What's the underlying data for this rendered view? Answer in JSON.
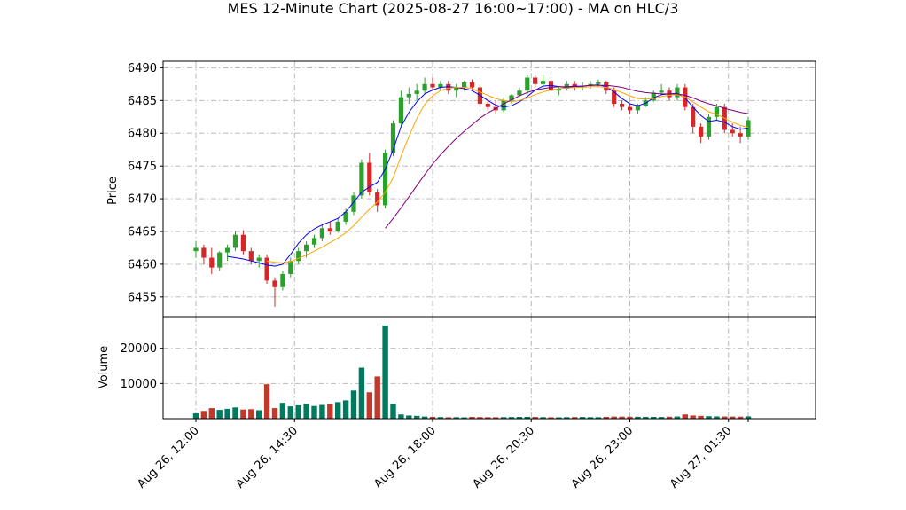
{
  "chart_data": {
    "type": "candlestick",
    "title": "MES 12-Minute Chart (2025-08-27 16:00~17:00) - MA on HLC/3",
    "price_panel": {
      "ylabel": "Price",
      "ylim": [
        6452,
        6491
      ],
      "yticks": [
        6455,
        6460,
        6465,
        6470,
        6475,
        6480,
        6485,
        6490
      ],
      "ytick_labels": [
        "6455",
        "6460",
        "6465",
        "6470",
        "6475",
        "6480",
        "6485",
        "6490"
      ],
      "grid": true
    },
    "volume_panel": {
      "ylabel": "Volume",
      "ylim": [
        0,
        29000
      ],
      "yticks": [
        10000,
        20000
      ],
      "ytick_labels": [
        "10000",
        "20000"
      ],
      "grid": true
    },
    "x_axis": {
      "tick_labels": [
        "Aug 26, 12:00",
        "Aug 26, 14:30",
        "Aug 26, 18:00",
        "Aug 26, 20:30",
        "Aug 26, 23:00",
        "Aug 27, 01:30"
      ],
      "tick_bar_index": [
        0,
        12.5,
        30,
        42.5,
        55,
        67.5
      ],
      "label_rotation": 45
    },
    "bar_interval_minutes": 12,
    "candles_ohlc": [
      [
        6462.0,
        6463.5,
        6461.0,
        6462.5
      ],
      [
        6462.5,
        6463.0,
        6460.0,
        6461.0
      ],
      [
        6461.0,
        6462.5,
        6458.5,
        6459.5
      ],
      [
        6459.5,
        6462.0,
        6459.0,
        6461.8
      ],
      [
        6461.8,
        6463.0,
        6460.5,
        6462.5
      ],
      [
        6462.5,
        6465.0,
        6462.0,
        6464.5
      ],
      [
        6464.5,
        6465.2,
        6461.5,
        6462.0
      ],
      [
        6462.0,
        6462.5,
        6460.0,
        6460.5
      ],
      [
        6460.5,
        6461.5,
        6459.5,
        6461.0
      ],
      [
        6461.0,
        6461.5,
        6457.0,
        6457.5
      ],
      [
        6457.5,
        6458.0,
        6453.5,
        6456.5
      ],
      [
        6456.5,
        6459.0,
        6456.0,
        6458.5
      ],
      [
        6458.5,
        6461.0,
        6458.0,
        6460.5
      ],
      [
        6460.5,
        6462.5,
        6460.0,
        6462.0
      ],
      [
        6462.0,
        6463.5,
        6461.0,
        6463.0
      ],
      [
        6463.0,
        6464.5,
        6462.5,
        6464.0
      ],
      [
        6464.0,
        6466.0,
        6463.5,
        6465.5
      ],
      [
        6465.5,
        6466.5,
        6464.5,
        6465.0
      ],
      [
        6465.0,
        6467.0,
        6464.8,
        6466.5
      ],
      [
        6466.5,
        6468.5,
        6466.0,
        6468.0
      ],
      [
        6468.0,
        6471.0,
        6467.5,
        6470.5
      ],
      [
        6470.5,
        6476.0,
        6470.0,
        6475.5
      ],
      [
        6475.5,
        6477.0,
        6470.5,
        6471.0
      ],
      [
        6471.0,
        6471.5,
        6468.0,
        6469.0
      ],
      [
        6469.0,
        6477.5,
        6468.5,
        6477.0
      ],
      [
        6477.0,
        6482.0,
        6476.5,
        6481.5
      ],
      [
        6481.5,
        6486.5,
        6481.0,
        6485.5
      ],
      [
        6485.5,
        6487.0,
        6484.5,
        6486.0
      ],
      [
        6486.0,
        6487.5,
        6485.0,
        6486.5
      ],
      [
        6486.5,
        6488.5,
        6486.0,
        6487.5
      ],
      [
        6487.5,
        6488.5,
        6486.5,
        6487.0
      ],
      [
        6487.0,
        6488.0,
        6486.5,
        6487.5
      ],
      [
        6487.5,
        6488.0,
        6486.0,
        6486.5
      ],
      [
        6486.5,
        6487.5,
        6485.5,
        6487.0
      ],
      [
        6487.0,
        6488.0,
        6486.5,
        6487.8
      ],
      [
        6487.8,
        6488.2,
        6486.5,
        6487.0
      ],
      [
        6487.0,
        6487.5,
        6484.0,
        6484.5
      ],
      [
        6484.5,
        6485.0,
        6483.5,
        6484.0
      ],
      [
        6484.0,
        6485.0,
        6483.0,
        6483.5
      ],
      [
        6483.5,
        6485.5,
        6483.2,
        6485.0
      ],
      [
        6485.0,
        6486.0,
        6484.5,
        6485.8
      ],
      [
        6485.8,
        6487.0,
        6485.5,
        6486.5
      ],
      [
        6486.5,
        6489.0,
        6486.0,
        6488.5
      ],
      [
        6488.5,
        6489.0,
        6487.0,
        6487.5
      ],
      [
        6487.5,
        6489.0,
        6487.0,
        6488.0
      ],
      [
        6488.0,
        6488.5,
        6486.0,
        6486.5
      ],
      [
        6486.5,
        6487.0,
        6485.8,
        6486.8
      ],
      [
        6486.8,
        6488.0,
        6486.5,
        6487.5
      ],
      [
        6487.5,
        6488.0,
        6486.5,
        6487.0
      ],
      [
        6487.0,
        6487.8,
        6486.5,
        6487.2
      ],
      [
        6487.2,
        6488.0,
        6486.8,
        6487.5
      ],
      [
        6487.5,
        6488.2,
        6487.0,
        6487.8
      ],
      [
        6487.8,
        6488.0,
        6486.0,
        6486.5
      ],
      [
        6486.5,
        6487.0,
        6484.0,
        6484.5
      ],
      [
        6484.5,
        6485.0,
        6483.5,
        6484.0
      ],
      [
        6484.0,
        6484.5,
        6483.0,
        6483.5
      ],
      [
        6483.5,
        6484.5,
        6483.0,
        6484.2
      ],
      [
        6484.2,
        6485.5,
        6484.0,
        6485.0
      ],
      [
        6485.0,
        6486.5,
        6484.8,
        6486.2
      ],
      [
        6486.2,
        6487.5,
        6485.8,
        6486.5
      ],
      [
        6486.5,
        6487.0,
        6485.0,
        6485.5
      ],
      [
        6485.5,
        6487.5,
        6485.0,
        6487.0
      ],
      [
        6487.0,
        6487.5,
        6483.5,
        6484.0
      ],
      [
        6484.0,
        6484.5,
        6480.0,
        6481.0
      ],
      [
        6481.0,
        6481.5,
        6478.5,
        6479.5
      ],
      [
        6479.5,
        6483.0,
        6479.0,
        6482.5
      ],
      [
        6482.5,
        6484.5,
        6482.0,
        6484.0
      ],
      [
        6484.0,
        6484.5,
        6480.0,
        6480.5
      ],
      [
        6480.5,
        6481.5,
        6479.5,
        6480.0
      ],
      [
        6480.0,
        6481.0,
        6478.5,
        6479.5
      ],
      [
        6479.5,
        6482.5,
        6479.0,
        6482.0
      ]
    ],
    "volume": [
      1500,
      2200,
      3000,
      2500,
      2800,
      3200,
      2600,
      2700,
      2400,
      9800,
      3000,
      4500,
      3500,
      3800,
      4200,
      3600,
      3900,
      4100,
      4700,
      5200,
      8000,
      14500,
      7500,
      12000,
      26500,
      4200,
      1200,
      900,
      800,
      600,
      500,
      450,
      400,
      420,
      380,
      500,
      450,
      420,
      400,
      430,
      460,
      500,
      520,
      480,
      430,
      400,
      380,
      420,
      450,
      470,
      430,
      410,
      520,
      600,
      580,
      560,
      540,
      520,
      500,
      480,
      560,
      620,
      1200,
      900,
      800,
      700,
      650,
      620,
      600,
      580,
      650
    ],
    "volume_up_color": "#007a5e",
    "volume_down_color": "#c0392b",
    "candle_up_color": "#2ca02c",
    "candle_down_color": "#d62728",
    "ma_lines": [
      {
        "color": "#0000ff",
        "values": [
          null,
          null,
          null,
          null,
          6461.2,
          6461.0,
          6460.8,
          6460.5,
          6460.2,
          6459.9,
          6459.7,
          6460.0,
          6461.5,
          6463.2,
          6464.5,
          6465.4,
          6466.0,
          6466.5,
          6467.0,
          6468.0,
          6469.5,
          6471.0,
          6471.8,
          6472.5,
          6474.5,
          6477.5,
          6481.0,
          6483.2,
          6484.8,
          6486.0,
          6486.6,
          6487.0,
          6487.1,
          6487.0,
          6486.8,
          6486.5,
          6485.8,
          6485.0,
          6484.3,
          6484.0,
          6484.2,
          6484.8,
          6485.6,
          6486.6,
          6487.2,
          6487.3,
          6487.1,
          6487.0,
          6487.1,
          6487.2,
          6487.3,
          6487.4,
          6487.1,
          6486.3,
          6485.3,
          6484.5,
          6484.2,
          6484.6,
          6485.4,
          6485.9,
          6486.0,
          6486.1,
          6485.4,
          6484.0,
          6482.7,
          6481.8,
          6482.0,
          6481.7,
          6481.0,
          6480.6,
          6480.8
        ]
      },
      {
        "color": "#ffa500",
        "values": [
          null,
          null,
          null,
          null,
          null,
          null,
          null,
          null,
          null,
          6460.5,
          6460.3,
          6460.2,
          6460.4,
          6460.9,
          6461.4,
          6462.0,
          6462.6,
          6463.3,
          6464.0,
          6464.8,
          6465.9,
          6467.2,
          6468.4,
          6469.5,
          6471.0,
          6473.2,
          6476.5,
          6479.5,
          6482.3,
          6484.4,
          6485.7,
          6486.5,
          6486.9,
          6487.0,
          6487.0,
          6486.8,
          6486.3,
          6485.8,
          6485.3,
          6485.0,
          6484.8,
          6485.0,
          6485.4,
          6485.9,
          6486.3,
          6486.6,
          6486.8,
          6486.9,
          6487.0,
          6487.0,
          6487.1,
          6487.1,
          6487.0,
          6486.7,
          6486.2,
          6485.7,
          6485.3,
          6485.2,
          6485.3,
          6485.6,
          6485.8,
          6485.9,
          6485.5,
          6484.8,
          6484.0,
          6483.3,
          6482.9,
          6482.3,
          6481.7,
          6481.2,
          6480.9
        ]
      },
      {
        "color": "#800080",
        "values": [
          null,
          null,
          null,
          null,
          null,
          null,
          null,
          null,
          null,
          null,
          null,
          null,
          null,
          null,
          null,
          null,
          null,
          null,
          null,
          null,
          null,
          null,
          null,
          null,
          6465.5,
          6467.0,
          6468.6,
          6470.3,
          6472.0,
          6473.7,
          6475.3,
          6476.7,
          6478.0,
          6479.2,
          6480.3,
          6481.3,
          6482.3,
          6483.1,
          6483.8,
          6484.5,
          6485.1,
          6485.7,
          6486.2,
          6486.6,
          6486.8,
          6487.0,
          6487.1,
          6487.1,
          6487.2,
          6487.2,
          6487.3,
          6487.3,
          6487.3,
          6487.2,
          6487.0,
          6486.7,
          6486.4,
          6486.2,
          6486.1,
          6486.0,
          6486.0,
          6486.0,
          6485.8,
          6485.4,
          6484.9,
          6484.5,
          6484.2,
          6483.8,
          6483.5,
          6483.2,
          6483.0
        ]
      }
    ]
  }
}
